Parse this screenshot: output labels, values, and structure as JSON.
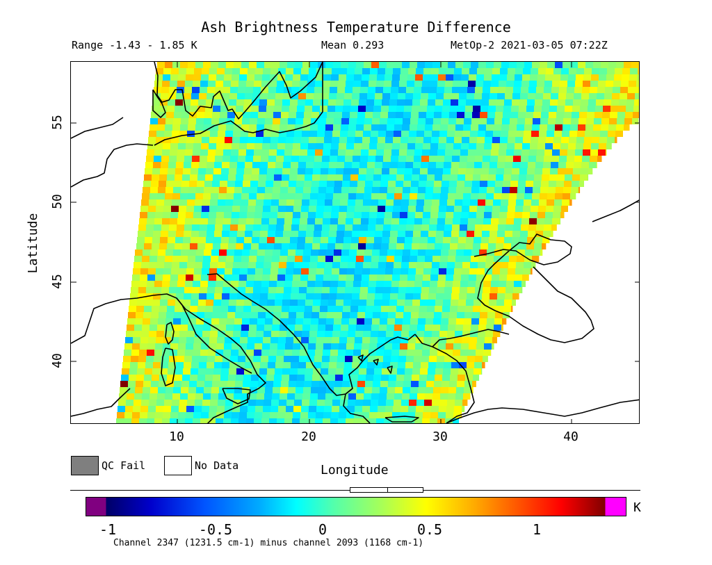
{
  "title": "Ash Brightness Temperature Difference",
  "header": {
    "range": "Range -1.43 - 1.85 K",
    "mean": "Mean 0.293",
    "satellite": "MetOp-2 2021-03-05 07:22Z"
  },
  "axes": {
    "xlabel": "Longitude",
    "ylabel": "Latitude",
    "xticks": [
      "10",
      "20",
      "30",
      "40"
    ],
    "yticks": [
      "55",
      "50",
      "45",
      "40"
    ]
  },
  "legend": {
    "qc_fail": "QC Fail",
    "no_data": "No Data",
    "qc_fail_color": "#7f7f7f",
    "no_data_color": "#ffffff"
  },
  "colorbar": {
    "unit": "K",
    "ticks": [
      "-1",
      "-0.5",
      "0",
      "0.5",
      "1"
    ],
    "caption": "Channel 2347 (1231.5 cm-1) minus channel 2093 (1168 cm-1)",
    "low_color": "#800080",
    "high_color": "#ff00ff"
  },
  "map": {
    "lon_range": [
      2,
      45
    ],
    "lat_range": [
      36,
      59
    ],
    "projection": "equirectangular",
    "mean_value": 0.293,
    "data_min": -1.43,
    "data_max": 1.85
  }
}
